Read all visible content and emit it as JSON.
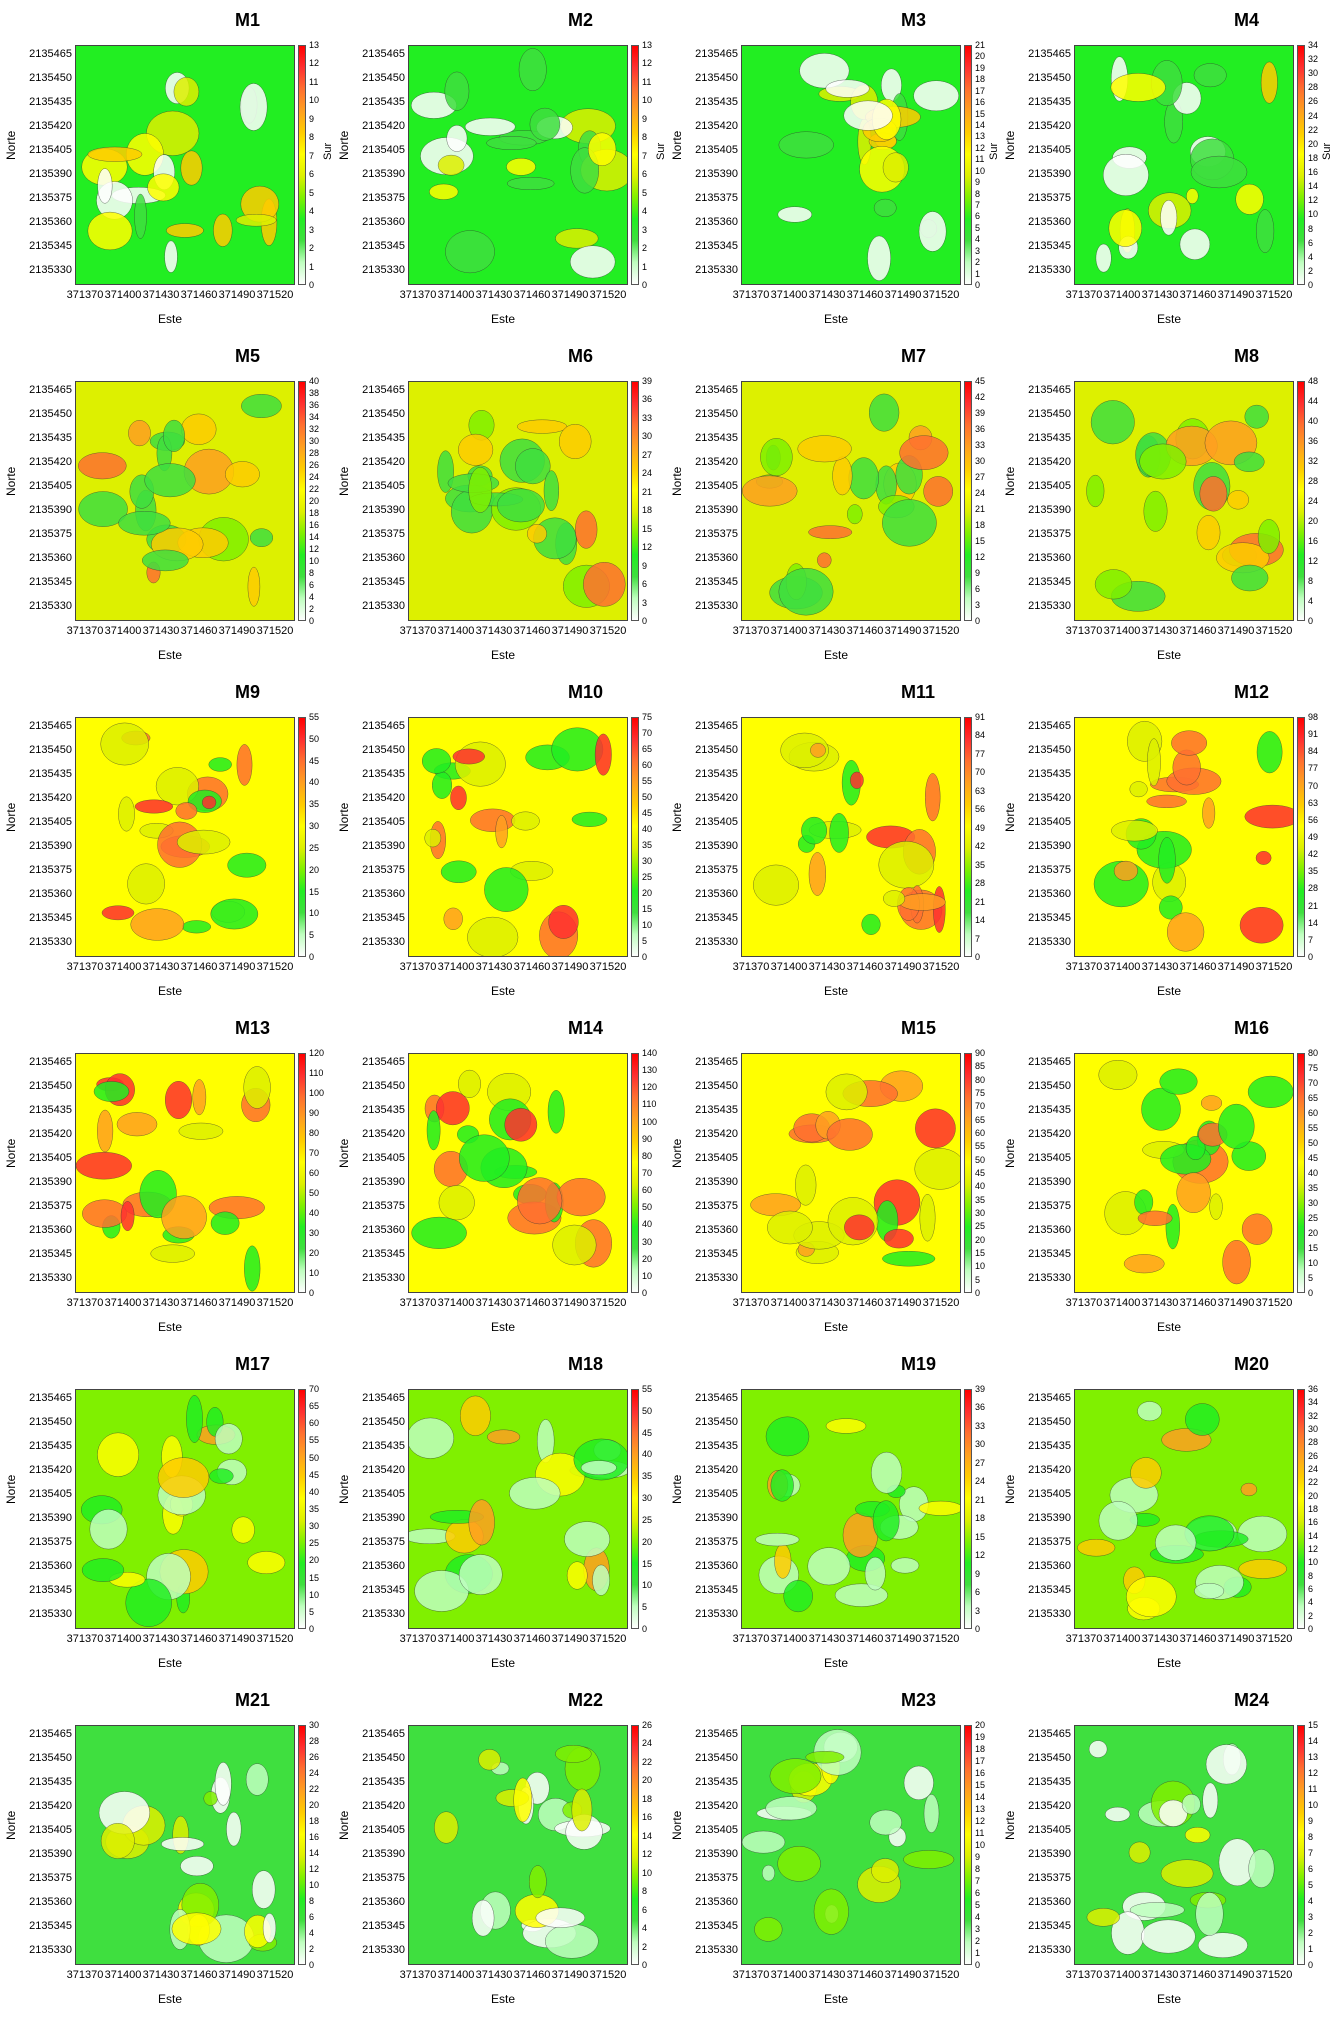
{
  "colors": {
    "ramp": [
      "#ffffff",
      "#bfffbf",
      "#3fdf3f",
      "#22ee22",
      "#80f000",
      "#ddf000",
      "#ffff00",
      "#ffcc00",
      "#ffa020",
      "#ff7030",
      "#ff3030",
      "#ff0000"
    ],
    "contour": "#333333"
  },
  "axes": {
    "xlabel": "Este",
    "ylabel": "Norte",
    "xticks": [
      "371370",
      "371400",
      "371430",
      "371460",
      "371490",
      "371520"
    ],
    "yticks": [
      "2135465",
      "2135450",
      "2135435",
      "2135420",
      "2135405",
      "2135390",
      "2135375",
      "2135360",
      "2135345",
      "2135330"
    ]
  },
  "chart_data": [
    {
      "type": "heatmap",
      "title": "M1",
      "colorbar_unit": "Sur",
      "colorbar_ticks": [
        "13",
        "12",
        "11",
        "10",
        "9",
        "8",
        "7",
        "6",
        "5",
        "4",
        "3",
        "2",
        "1",
        "0"
      ],
      "vmax": 13
    },
    {
      "type": "heatmap",
      "title": "M2",
      "colorbar_unit": "Sur",
      "colorbar_ticks": [
        "13",
        "12",
        "11",
        "10",
        "9",
        "8",
        "7",
        "6",
        "5",
        "4",
        "3",
        "2",
        "1",
        "0"
      ],
      "vmax": 13
    },
    {
      "type": "heatmap",
      "title": "M3",
      "colorbar_unit": "Sur",
      "colorbar_ticks": [
        "21",
        "20",
        "19",
        "18",
        "17",
        "16",
        "15",
        "14",
        "13",
        "12",
        "11",
        "10",
        "9",
        "8",
        "7",
        "6",
        "5",
        "4",
        "3",
        "2",
        "1",
        "0"
      ],
      "vmax": 21
    },
    {
      "type": "heatmap",
      "title": "M4",
      "colorbar_unit": "Sur",
      "colorbar_ticks": [
        "34",
        "32",
        "30",
        "28",
        "26",
        "24",
        "22",
        "20",
        "18",
        "16",
        "14",
        "12",
        "10",
        "8",
        "6",
        "4",
        "2",
        "0"
      ],
      "vmax": 34
    },
    {
      "type": "heatmap",
      "title": "M5",
      "colorbar_unit": "",
      "colorbar_ticks": [
        "40",
        "38",
        "36",
        "34",
        "32",
        "30",
        "28",
        "26",
        "24",
        "22",
        "20",
        "18",
        "16",
        "14",
        "12",
        "10",
        "8",
        "6",
        "4",
        "2",
        "0"
      ],
      "vmax": 40
    },
    {
      "type": "heatmap",
      "title": "M6",
      "colorbar_unit": "",
      "colorbar_ticks": [
        "39",
        "36",
        "33",
        "30",
        "27",
        "24",
        "21",
        "18",
        "15",
        "12",
        "9",
        "6",
        "3",
        "0"
      ],
      "vmax": 39
    },
    {
      "type": "heatmap",
      "title": "M7",
      "colorbar_unit": "",
      "colorbar_ticks": [
        "45",
        "42",
        "39",
        "36",
        "33",
        "30",
        "27",
        "24",
        "21",
        "18",
        "15",
        "12",
        "9",
        "6",
        "3",
        "0"
      ],
      "vmax": 45
    },
    {
      "type": "heatmap",
      "title": "M8",
      "colorbar_unit": "",
      "colorbar_ticks": [
        "48",
        "44",
        "40",
        "36",
        "32",
        "28",
        "24",
        "20",
        "16",
        "12",
        "8",
        "4",
        "0"
      ],
      "vmax": 48
    },
    {
      "type": "heatmap",
      "title": "M9",
      "colorbar_unit": "",
      "colorbar_ticks": [
        "55",
        "50",
        "45",
        "40",
        "35",
        "30",
        "25",
        "20",
        "15",
        "10",
        "5",
        "0"
      ],
      "vmax": 55
    },
    {
      "type": "heatmap",
      "title": "M10",
      "colorbar_unit": "",
      "colorbar_ticks": [
        "75",
        "70",
        "65",
        "60",
        "55",
        "50",
        "45",
        "40",
        "35",
        "30",
        "25",
        "20",
        "15",
        "10",
        "5",
        "0"
      ],
      "vmax": 75
    },
    {
      "type": "heatmap",
      "title": "M11",
      "colorbar_unit": "",
      "colorbar_ticks": [
        "91",
        "84",
        "77",
        "70",
        "63",
        "56",
        "49",
        "42",
        "35",
        "28",
        "21",
        "14",
        "7",
        "0"
      ],
      "vmax": 91
    },
    {
      "type": "heatmap",
      "title": "M12",
      "colorbar_unit": "",
      "colorbar_ticks": [
        "98",
        "91",
        "84",
        "77",
        "70",
        "63",
        "56",
        "49",
        "42",
        "35",
        "28",
        "21",
        "14",
        "7",
        "0"
      ],
      "vmax": 98
    },
    {
      "type": "heatmap",
      "title": "M13",
      "colorbar_unit": "",
      "colorbar_ticks": [
        "120",
        "110",
        "100",
        "90",
        "80",
        "70",
        "60",
        "50",
        "40",
        "30",
        "20",
        "10",
        "0"
      ],
      "vmax": 120
    },
    {
      "type": "heatmap",
      "title": "M14",
      "colorbar_unit": "",
      "colorbar_ticks": [
        "140",
        "130",
        "120",
        "110",
        "100",
        "90",
        "80",
        "70",
        "60",
        "50",
        "40",
        "30",
        "20",
        "10",
        "0"
      ],
      "vmax": 140
    },
    {
      "type": "heatmap",
      "title": "M15",
      "colorbar_unit": "",
      "colorbar_ticks": [
        "90",
        "85",
        "80",
        "75",
        "70",
        "65",
        "60",
        "55",
        "50",
        "45",
        "40",
        "35",
        "30",
        "25",
        "20",
        "15",
        "10",
        "5",
        "0"
      ],
      "vmax": 90
    },
    {
      "type": "heatmap",
      "title": "M16",
      "colorbar_unit": "",
      "colorbar_ticks": [
        "80",
        "75",
        "70",
        "65",
        "60",
        "55",
        "50",
        "45",
        "40",
        "35",
        "30",
        "25",
        "20",
        "15",
        "10",
        "5",
        "0"
      ],
      "vmax": 80
    },
    {
      "type": "heatmap",
      "title": "M17",
      "colorbar_unit": "",
      "colorbar_ticks": [
        "70",
        "65",
        "60",
        "55",
        "50",
        "45",
        "40",
        "35",
        "30",
        "25",
        "20",
        "15",
        "10",
        "5",
        "0"
      ],
      "vmax": 70
    },
    {
      "type": "heatmap",
      "title": "M18",
      "colorbar_unit": "",
      "colorbar_ticks": [
        "55",
        "50",
        "45",
        "40",
        "35",
        "30",
        "25",
        "20",
        "15",
        "10",
        "5",
        "0"
      ],
      "vmax": 55
    },
    {
      "type": "heatmap",
      "title": "M19",
      "colorbar_unit": "",
      "colorbar_ticks": [
        "39",
        "36",
        "33",
        "30",
        "27",
        "24",
        "21",
        "18",
        "15",
        "12",
        "9",
        "6",
        "3",
        "0"
      ],
      "vmax": 39
    },
    {
      "type": "heatmap",
      "title": "M20",
      "colorbar_unit": "",
      "colorbar_ticks": [
        "36",
        "34",
        "32",
        "30",
        "28",
        "26",
        "24",
        "22",
        "20",
        "18",
        "16",
        "14",
        "12",
        "10",
        "8",
        "6",
        "4",
        "2",
        "0"
      ],
      "vmax": 36
    },
    {
      "type": "heatmap",
      "title": "M21",
      "colorbar_unit": "",
      "colorbar_ticks": [
        "30",
        "28",
        "26",
        "24",
        "22",
        "20",
        "18",
        "16",
        "14",
        "12",
        "10",
        "8",
        "6",
        "4",
        "2",
        "0"
      ],
      "vmax": 30
    },
    {
      "type": "heatmap",
      "title": "M22",
      "colorbar_unit": "",
      "colorbar_ticks": [
        "26",
        "24",
        "22",
        "20",
        "18",
        "16",
        "14",
        "12",
        "10",
        "8",
        "6",
        "4",
        "2",
        "0"
      ],
      "vmax": 26
    },
    {
      "type": "heatmap",
      "title": "M23",
      "colorbar_unit": "",
      "colorbar_ticks": [
        "20",
        "19",
        "18",
        "17",
        "16",
        "15",
        "14",
        "13",
        "12",
        "11",
        "10",
        "9",
        "8",
        "7",
        "6",
        "5",
        "4",
        "3",
        "2",
        "1",
        "0"
      ],
      "vmax": 20
    },
    {
      "type": "heatmap",
      "title": "M24",
      "colorbar_unit": "",
      "colorbar_ticks": [
        "15",
        "14",
        "13",
        "12",
        "11",
        "10",
        "9",
        "8",
        "7",
        "6",
        "5",
        "4",
        "3",
        "2",
        "1",
        "0"
      ],
      "vmax": 15
    }
  ]
}
